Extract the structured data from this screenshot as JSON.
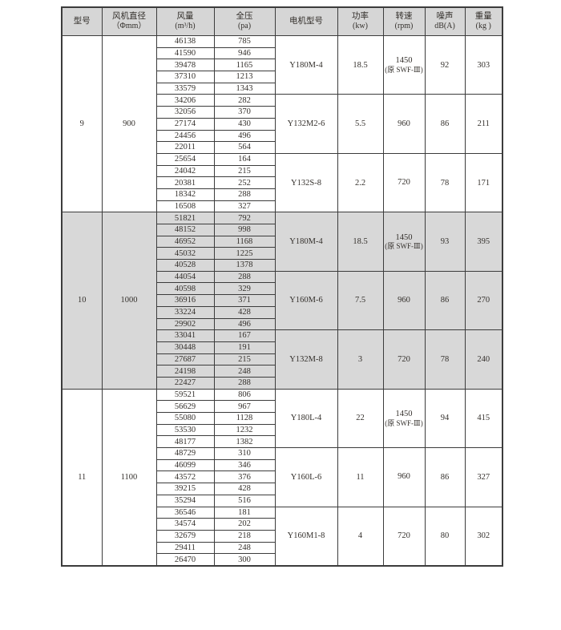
{
  "table": {
    "headers": [
      {
        "line1": "型号",
        "line2": ""
      },
      {
        "line1": "风机直径",
        "line2": "（Φmm）"
      },
      {
        "line1": "风量",
        "line2": "(m³/h)"
      },
      {
        "line1": "全压",
        "line2": "(pa)"
      },
      {
        "line1": "电机型号",
        "line2": ""
      },
      {
        "line1": "功率",
        "line2": "(kw)"
      },
      {
        "line1": "转速",
        "line2": "(rpm)"
      },
      {
        "line1": "噪声",
        "line2": "dB(A)"
      },
      {
        "line1": "重量",
        "line2": "(kg )"
      }
    ],
    "groups": [
      {
        "model": "9",
        "diameter": "900",
        "shaded": false,
        "subgroups": [
          {
            "rows": [
              [
                "46138",
                "785"
              ],
              [
                "41590",
                "946"
              ],
              [
                "39478",
                "1165"
              ],
              [
                "37310",
                "1213"
              ],
              [
                "33579",
                "1343"
              ]
            ],
            "motor": "Y180M-4",
            "power": "18.5",
            "speed": "1450",
            "speed_note": "(原 SWF-Ⅲ)",
            "noise": "92",
            "weight": "303"
          },
          {
            "rows": [
              [
                "34206",
                "282"
              ],
              [
                "32056",
                "370"
              ],
              [
                "27174",
                "430"
              ],
              [
                "24456",
                "496"
              ],
              [
                "22011",
                "564"
              ]
            ],
            "motor": "Y132M2-6",
            "power": "5.5",
            "speed": "960",
            "speed_note": "",
            "noise": "86",
            "weight": "211"
          },
          {
            "rows": [
              [
                "25654",
                "164"
              ],
              [
                "24042",
                "215"
              ],
              [
                "20381",
                "252"
              ],
              [
                "18342",
                "288"
              ],
              [
                "16508",
                "327"
              ]
            ],
            "motor": "Y132S-8",
            "power": "2.2",
            "speed": "720",
            "speed_note": "",
            "noise": "78",
            "weight": "171"
          }
        ]
      },
      {
        "model": "10",
        "diameter": "1000",
        "shaded": true,
        "subgroups": [
          {
            "rows": [
              [
                "51821",
                "792"
              ],
              [
                "48152",
                "998"
              ],
              [
                "46952",
                "1168"
              ],
              [
                "45032",
                "1225"
              ],
              [
                "40528",
                "1378"
              ]
            ],
            "motor": "Y180M-4",
            "power": "18.5",
            "speed": "1450",
            "speed_note": "(原 SWF-Ⅲ)",
            "noise": "93",
            "weight": "395"
          },
          {
            "rows": [
              [
                "44054",
                "288"
              ],
              [
                "40598",
                "329"
              ],
              [
                "36916",
                "371"
              ],
              [
                "33224",
                "428"
              ],
              [
                "29902",
                "496"
              ]
            ],
            "motor": "Y160M-6",
            "power": "7.5",
            "speed": "960",
            "speed_note": "",
            "noise": "86",
            "weight": "270"
          },
          {
            "rows": [
              [
                "33041",
                "167"
              ],
              [
                "30448",
                "191"
              ],
              [
                "27687",
                "215"
              ],
              [
                "24198",
                "248"
              ],
              [
                "22427",
                "288"
              ]
            ],
            "motor": "Y132M-8",
            "power": "3",
            "speed": "720",
            "speed_note": "",
            "noise": "78",
            "weight": "240"
          }
        ]
      },
      {
        "model": "11",
        "diameter": "1100",
        "shaded": false,
        "subgroups": [
          {
            "rows": [
              [
                "59521",
                "806"
              ],
              [
                "56629",
                "967"
              ],
              [
                "55080",
                "1128"
              ],
              [
                "53530",
                "1232"
              ],
              [
                "48177",
                "1382"
              ]
            ],
            "motor": "Y180L-4",
            "power": "22",
            "speed": "1450",
            "speed_note": "(原 SWF-Ⅲ)",
            "noise": "94",
            "weight": "415"
          },
          {
            "rows": [
              [
                "48729",
                "310"
              ],
              [
                "46099",
                "346"
              ],
              [
                "43572",
                "376"
              ],
              [
                "39215",
                "428"
              ],
              [
                "35294",
                "516"
              ]
            ],
            "motor": "Y160L-6",
            "power": "11",
            "speed": "960",
            "speed_note": "",
            "noise": "86",
            "weight": "327"
          },
          {
            "rows": [
              [
                "36546",
                "181"
              ],
              [
                "34574",
                "202"
              ],
              [
                "32679",
                "218"
              ],
              [
                "29411",
                "248"
              ],
              [
                "26470",
                "300"
              ]
            ],
            "motor": "Y160M1-8",
            "power": "4",
            "speed": "720",
            "speed_note": "",
            "noise": "80",
            "weight": "302"
          }
        ]
      }
    ],
    "colors": {
      "header_bg": "#d6d6d6",
      "shaded_band_bg": "#d8d8d8",
      "border": "#3c3c3c",
      "text": "#34302c"
    }
  }
}
